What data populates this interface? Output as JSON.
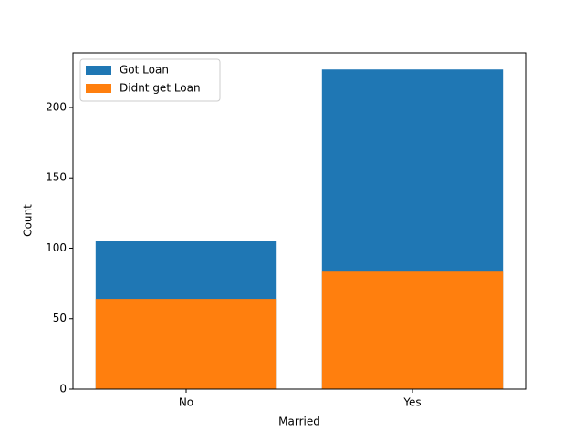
{
  "chart_data": {
    "type": "bar",
    "overlap": true,
    "xlabel": "Married",
    "ylabel": "Count",
    "categories": [
      "No",
      "Yes"
    ],
    "series": [
      {
        "name": "Got Loan",
        "color": "#1f77b4",
        "values": [
          105,
          227
        ]
      },
      {
        "name": "Didnt get Loan",
        "color": "#ff7f0e",
        "values": [
          64,
          84
        ]
      }
    ],
    "ylim": [
      0,
      238.8
    ],
    "yticks": [
      0,
      50,
      100,
      150,
      200
    ],
    "legend": "upper left"
  }
}
